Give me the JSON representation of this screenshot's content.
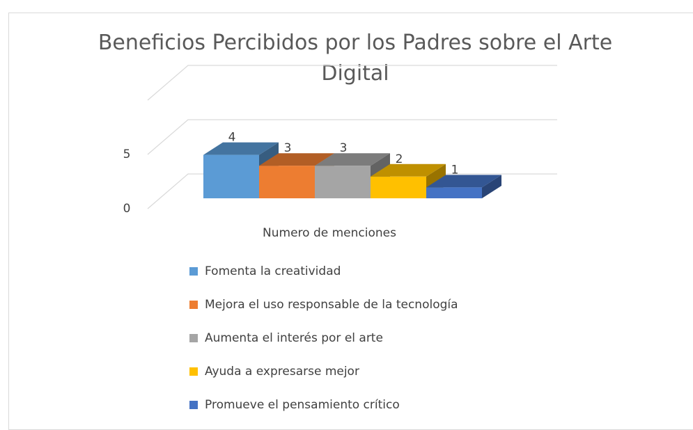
{
  "chart_data": {
    "type": "bar3d",
    "title": "Beneficios Percibidos por los Padres sobre el Arte Digital",
    "categories": [
      "Numero de menciones"
    ],
    "series": [
      {
        "name": "Fomenta la creatividad",
        "color": "#5b9bd5",
        "values": [
          4
        ]
      },
      {
        "name": "Mejora el uso responsable de la tecnología",
        "color": "#ed7d31",
        "values": [
          3
        ]
      },
      {
        "name": "Aumenta el interés por el arte",
        "color": "#a5a5a5",
        "values": [
          3
        ]
      },
      {
        "name": "Ayuda a expresarse mejor",
        "color": "#ffc000",
        "values": [
          2
        ]
      },
      {
        "name": "Promueve el pensamiento crítico",
        "color": "#4472c4",
        "values": [
          1
        ]
      }
    ],
    "ylim": [
      0,
      10
    ],
    "yticks": [
      0,
      5
    ],
    "grid": true,
    "legend": "bottom",
    "data_labels": true
  }
}
